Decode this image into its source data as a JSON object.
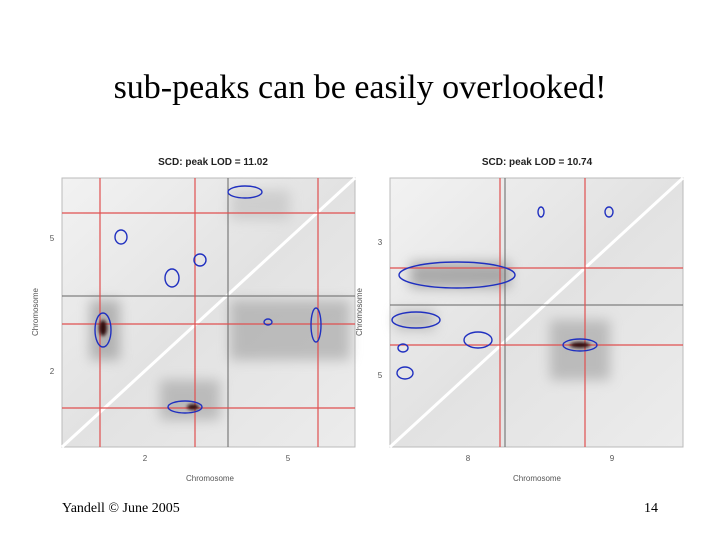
{
  "slide": {
    "title": "sub-peaks can be easily overlooked!",
    "footer": "Yandell © June 2005",
    "page_number": "14",
    "panels": [
      {
        "title": "SCD: peak LOD = 11.02",
        "x_label": "Chromosome",
        "y_label": "Chromosome",
        "x_ticks": [
          "2",
          "5"
        ],
        "y_ticks": [
          "5",
          "2"
        ]
      },
      {
        "title": "SCD: peak LOD = 10.74",
        "x_label": "Chromosome",
        "y_label": "Chromosome",
        "x_ticks": [
          "8",
          "9"
        ],
        "y_ticks": [
          "3",
          "5"
        ]
      }
    ]
  }
}
